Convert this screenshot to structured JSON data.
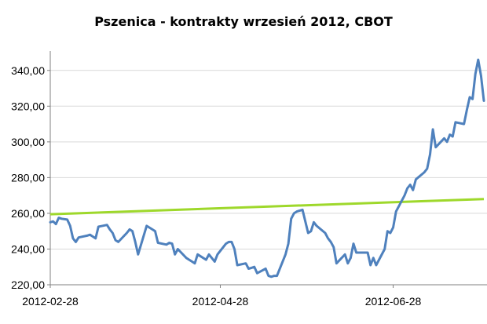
{
  "chart_data": {
    "type": "line",
    "title": "Pszenica - kontrakty wrzesień 2012, CBOT",
    "xlabel": "",
    "ylabel": "",
    "ylim": [
      220,
      350
    ],
    "y_ticks": [
      "220,00",
      "240,00",
      "260,00",
      "280,00",
      "300,00",
      "320,00",
      "340,00"
    ],
    "y_tick_values": [
      220,
      240,
      260,
      280,
      300,
      320,
      340
    ],
    "x_tick_labels": [
      "2012-02-28",
      "2012-04-28",
      "2012-06-28"
    ],
    "x_tick_dates": [
      "2012-02-28",
      "2012-04-28",
      "2012-06-28"
    ],
    "x_range": [
      "2012-02-28",
      "2012-07-30"
    ],
    "grid": "horizontal",
    "legend": "none",
    "colors": {
      "price": "#4f81bd",
      "trend": "#9ed82b",
      "grid": "#d9d9d9",
      "axis": "#808080"
    },
    "series": [
      {
        "values": [
          [
            "2012-02-28",
            255
          ],
          [
            "2012-02-29",
            255.5
          ],
          [
            "2012-03-01",
            254
          ],
          [
            "2012-03-02",
            257.5
          ],
          [
            "2012-03-03",
            257
          ],
          [
            "2012-03-05",
            256.5
          ],
          [
            "2012-03-06",
            253
          ],
          [
            "2012-03-07",
            246
          ],
          [
            "2012-03-08",
            244
          ],
          [
            "2012-03-09",
            246.5
          ],
          [
            "2012-03-12",
            247.5
          ],
          [
            "2012-03-13",
            248
          ],
          [
            "2012-03-14",
            247
          ],
          [
            "2012-03-15",
            246
          ],
          [
            "2012-03-16",
            252.5
          ],
          [
            "2012-03-19",
            253.5
          ],
          [
            "2012-03-20",
            251
          ],
          [
            "2012-03-21",
            249
          ],
          [
            "2012-03-22",
            245
          ],
          [
            "2012-03-23",
            244
          ],
          [
            "2012-03-26",
            249
          ],
          [
            "2012-03-27",
            251
          ],
          [
            "2012-03-28",
            250
          ],
          [
            "2012-03-29",
            244
          ],
          [
            "2012-03-30",
            237
          ],
          [
            "2012-04-02",
            253
          ],
          [
            "2012-04-03",
            252
          ],
          [
            "2012-04-04",
            251
          ],
          [
            "2012-04-05",
            250
          ],
          [
            "2012-04-06",
            243.5
          ],
          [
            "2012-04-09",
            242.5
          ],
          [
            "2012-04-10",
            243.5
          ],
          [
            "2012-04-11",
            243
          ],
          [
            "2012-04-12",
            237
          ],
          [
            "2012-04-13",
            240
          ],
          [
            "2012-04-16",
            235
          ],
          [
            "2012-04-17",
            234
          ],
          [
            "2012-04-18",
            233
          ],
          [
            "2012-04-19",
            232
          ],
          [
            "2012-04-20",
            237
          ],
          [
            "2012-04-23",
            234
          ],
          [
            "2012-04-24",
            237
          ],
          [
            "2012-04-25",
            235
          ],
          [
            "2012-04-26",
            233
          ],
          [
            "2012-04-27",
            237
          ],
          [
            "2012-04-30",
            243
          ],
          [
            "2012-05-01",
            244
          ],
          [
            "2012-05-02",
            244
          ],
          [
            "2012-05-03",
            240
          ],
          [
            "2012-05-04",
            231
          ],
          [
            "2012-05-07",
            232
          ],
          [
            "2012-05-08",
            229
          ],
          [
            "2012-05-09",
            229.5
          ],
          [
            "2012-05-10",
            230
          ],
          [
            "2012-05-11",
            226.5
          ],
          [
            "2012-05-14",
            229
          ],
          [
            "2012-05-15",
            225
          ],
          [
            "2012-05-16",
            224.5
          ],
          [
            "2012-05-17",
            225
          ],
          [
            "2012-05-18",
            225
          ],
          [
            "2012-05-21",
            237
          ],
          [
            "2012-05-22",
            243
          ],
          [
            "2012-05-23",
            257
          ],
          [
            "2012-05-24",
            260
          ],
          [
            "2012-05-25",
            261
          ],
          [
            "2012-05-27",
            262
          ],
          [
            "2012-05-29",
            249
          ],
          [
            "2012-05-30",
            250
          ],
          [
            "2012-05-31",
            255
          ],
          [
            "2012-06-01",
            253
          ],
          [
            "2012-06-04",
            249
          ],
          [
            "2012-06-05",
            246
          ],
          [
            "2012-06-06",
            244
          ],
          [
            "2012-06-07",
            241
          ],
          [
            "2012-06-08",
            232
          ],
          [
            "2012-06-11",
            237
          ],
          [
            "2012-06-12",
            232
          ],
          [
            "2012-06-13",
            235
          ],
          [
            "2012-06-14",
            243
          ],
          [
            "2012-06-15",
            238
          ],
          [
            "2012-06-18",
            238
          ],
          [
            "2012-06-19",
            238
          ],
          [
            "2012-06-20",
            231
          ],
          [
            "2012-06-21",
            235
          ],
          [
            "2012-06-22",
            231
          ],
          [
            "2012-06-25",
            240
          ],
          [
            "2012-06-26",
            250
          ],
          [
            "2012-06-27",
            249
          ],
          [
            "2012-06-28",
            252
          ],
          [
            "2012-06-29",
            261
          ],
          [
            "2012-07-02",
            270
          ],
          [
            "2012-07-03",
            274
          ],
          [
            "2012-07-04",
            276
          ],
          [
            "2012-07-05",
            273
          ],
          [
            "2012-07-06",
            279
          ],
          [
            "2012-07-09",
            283
          ],
          [
            "2012-07-10",
            285
          ],
          [
            "2012-07-11",
            293
          ],
          [
            "2012-07-12",
            307
          ],
          [
            "2012-07-13",
            297
          ],
          [
            "2012-07-16",
            302
          ],
          [
            "2012-07-17",
            300
          ],
          [
            "2012-07-18",
            304
          ],
          [
            "2012-07-19",
            303
          ],
          [
            "2012-07-20",
            311
          ],
          [
            "2012-07-23",
            310
          ],
          [
            "2012-07-24",
            318
          ],
          [
            "2012-07-25",
            325
          ],
          [
            "2012-07-26",
            324
          ],
          [
            "2012-07-27",
            338
          ],
          [
            "2012-07-28",
            346
          ],
          [
            "2012-07-29",
            337
          ],
          [
            "2012-07-30",
            323
          ]
        ]
      },
      {
        "type": "trendline",
        "values": [
          [
            "2012-02-28",
            259.5
          ],
          [
            "2012-07-30",
            268
          ]
        ]
      }
    ]
  }
}
